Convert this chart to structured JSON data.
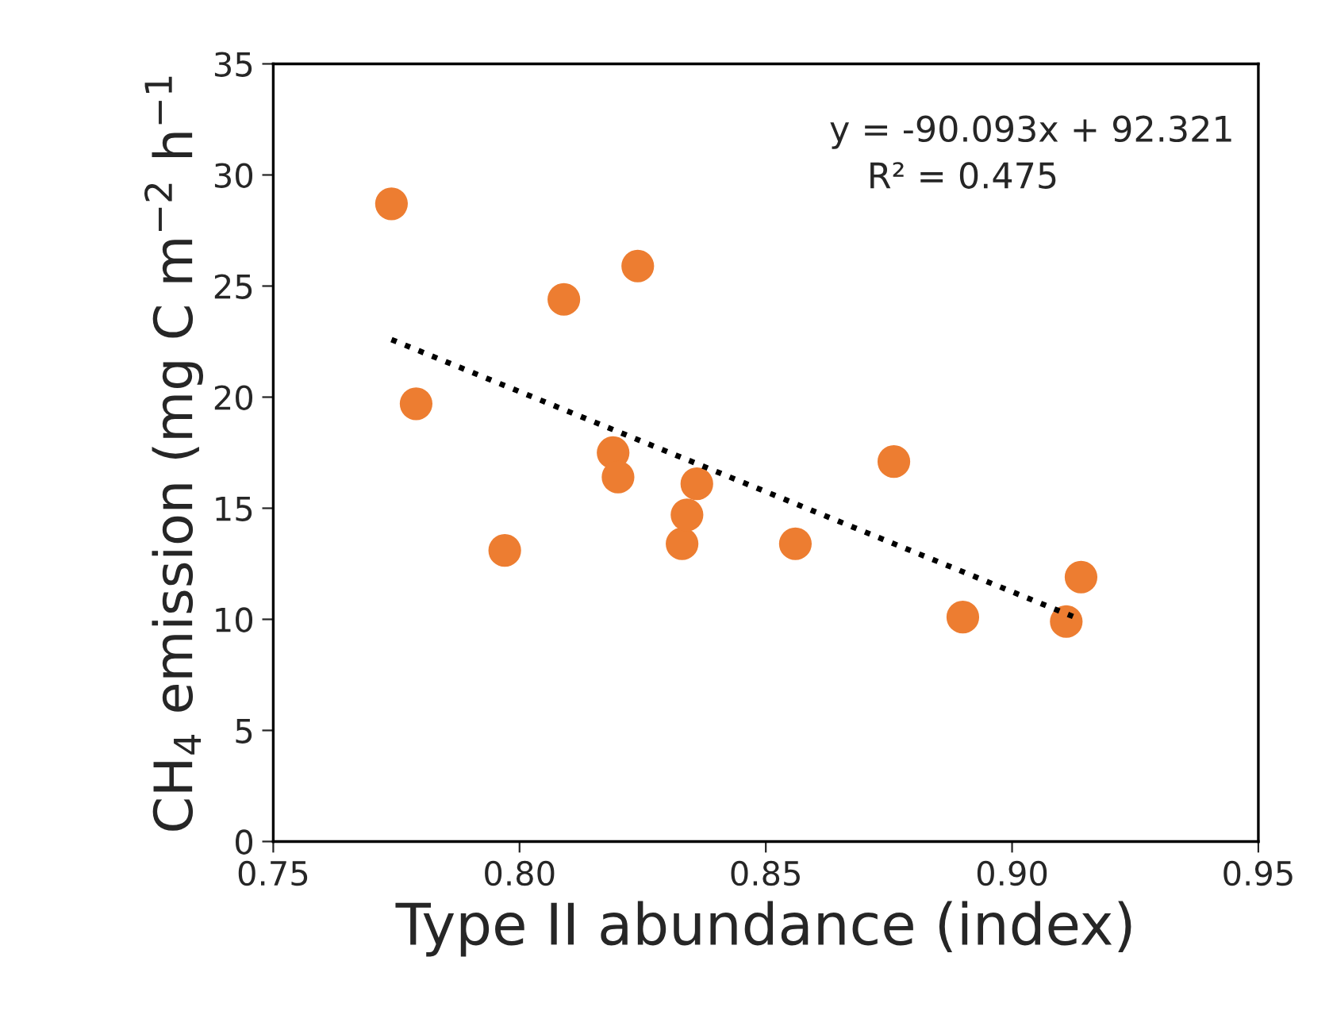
{
  "chart_data": {
    "type": "scatter",
    "xlabel": "Type II abundance (index)",
    "ylabel": "CH$_{4}$ emission (mg C m$^{−2}$ h$^{−1}$",
    "xlim": [
      0.75,
      0.95
    ],
    "ylim": [
      0,
      35
    ],
    "xticks": [
      {
        "value": 0.75,
        "label": "0.75"
      },
      {
        "value": 0.8,
        "label": "0.80"
      },
      {
        "value": 0.85,
        "label": "0.85"
      },
      {
        "value": 0.9,
        "label": "0.90"
      },
      {
        "value": 0.95,
        "label": "0.95"
      }
    ],
    "yticks": [
      0,
      5,
      10,
      15,
      20,
      25,
      30,
      35
    ],
    "grid": false,
    "legend": false,
    "series": [
      {
        "color": "#ed7d31",
        "marker": "circle",
        "x": [
          0.774,
          0.779,
          0.797,
          0.809,
          0.819,
          0.82,
          0.824,
          0.833,
          0.834,
          0.836,
          0.856,
          0.876,
          0.89,
          0.911,
          0.914
        ],
        "values": [
          28.7,
          19.7,
          13.1,
          24.4,
          17.5,
          16.4,
          25.9,
          13.4,
          14.7,
          16.1,
          13.4,
          17.1,
          10.1,
          9.9,
          11.9
        ]
      },
      {
        "type": "line",
        "color": "#000000",
        "line_style": "dotted",
        "marker": "none",
        "x": [
          0.774,
          0.913
        ],
        "values": [
          22.59,
          10.07
        ]
      }
    ],
    "annotations": [
      "y = -90.093x + 92.321",
      "R² = 0.475"
    ]
  }
}
